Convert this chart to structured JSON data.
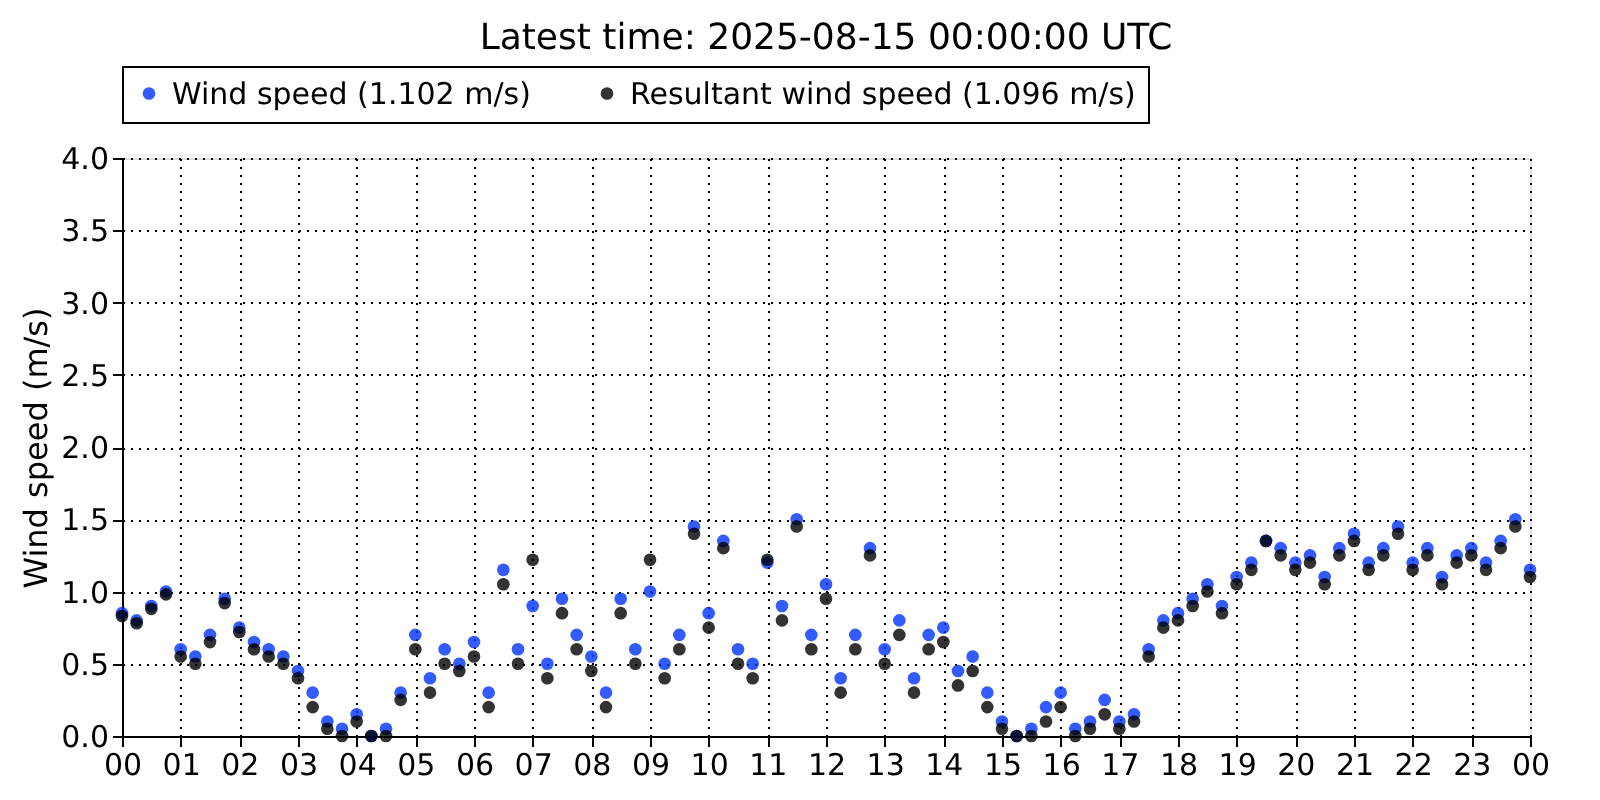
{
  "chart_data": {
    "type": "scatter",
    "title": "Latest time: 2025-08-15 00:00:00 UTC",
    "ylabel": "Wind speed (m/s)",
    "x": [
      0,
      0.25,
      0.5,
      0.75,
      1,
      1.25,
      1.5,
      1.75,
      2,
      2.25,
      2.5,
      2.75,
      3,
      3.25,
      3.5,
      3.75,
      4,
      4.25,
      4.5,
      4.75,
      5,
      5.25,
      5.5,
      5.75,
      6,
      6.25,
      6.5,
      6.75,
      7,
      7.25,
      7.5,
      7.75,
      8,
      8.25,
      8.5,
      8.75,
      9,
      9.25,
      9.5,
      9.75,
      10,
      10.25,
      10.5,
      10.75,
      11,
      11.25,
      11.5,
      11.75,
      12,
      12.25,
      12.5,
      12.75,
      13,
      13.25,
      13.5,
      13.75,
      14,
      14.25,
      14.5,
      14.75,
      15,
      15.25,
      15.5,
      15.75,
      16,
      16.25,
      16.5,
      16.75,
      17,
      17.25,
      17.5,
      17.75,
      18,
      18.25,
      18.5,
      18.75,
      19,
      19.25,
      19.5,
      19.75,
      20,
      20.25,
      20.5,
      20.75,
      21,
      21.25,
      21.5,
      21.75,
      22,
      22.25,
      22.5,
      22.75,
      23,
      23.25,
      23.5,
      23.75,
      24
    ],
    "series": [
      {
        "name": "Wind speed (1.102 m/s)",
        "color": "#0033ff",
        "values": [
          0.85,
          0.8,
          0.9,
          1.0,
          0.6,
          0.55,
          0.7,
          0.95,
          0.75,
          0.65,
          0.6,
          0.55,
          0.45,
          0.3,
          0.1,
          0.05,
          0.15,
          0.0,
          0.05,
          0.3,
          0.7,
          0.4,
          0.6,
          0.5,
          0.65,
          0.3,
          1.15,
          0.6,
          0.9,
          0.5,
          0.95,
          0.7,
          0.55,
          0.3,
          0.95,
          0.6,
          1.0,
          0.5,
          0.7,
          1.45,
          0.85,
          1.35,
          0.6,
          0.5,
          1.2,
          0.9,
          1.5,
          0.7,
          1.05,
          0.4,
          0.7,
          1.3,
          0.6,
          0.8,
          0.4,
          0.7,
          0.75,
          0.45,
          0.55,
          0.3,
          0.1,
          0.0,
          0.05,
          0.2,
          0.3,
          0.05,
          0.1,
          0.25,
          0.1,
          0.15,
          0.6,
          0.8,
          0.85,
          0.95,
          1.05,
          0.9,
          1.1,
          1.2,
          1.35,
          1.3,
          1.2,
          1.25,
          1.1,
          1.3,
          1.4,
          1.2,
          1.3,
          1.45,
          1.2,
          1.3,
          1.1,
          1.25,
          1.3,
          1.2,
          1.35,
          1.5,
          1.15
        ]
      },
      {
        "name": "Resultant wind speed (1.096 m/s)",
        "color": "#000000",
        "values": [
          0.83,
          0.78,
          0.88,
          0.98,
          0.55,
          0.5,
          0.65,
          0.92,
          0.72,
          0.6,
          0.55,
          0.5,
          0.4,
          0.2,
          0.05,
          0.0,
          0.1,
          0.0,
          0.0,
          0.25,
          0.6,
          0.3,
          0.5,
          0.45,
          0.55,
          0.2,
          1.05,
          0.5,
          1.22,
          0.4,
          0.85,
          0.6,
          0.45,
          0.2,
          0.85,
          0.5,
          1.22,
          0.4,
          0.6,
          1.4,
          0.75,
          1.3,
          0.5,
          0.4,
          1.22,
          0.8,
          1.45,
          0.6,
          0.95,
          0.3,
          0.6,
          1.25,
          0.5,
          0.7,
          0.3,
          0.6,
          0.65,
          0.35,
          0.45,
          0.2,
          0.05,
          0.0,
          0.0,
          0.1,
          0.2,
          0.0,
          0.05,
          0.15,
          0.05,
          0.1,
          0.55,
          0.75,
          0.8,
          0.9,
          1.0,
          0.85,
          1.05,
          1.15,
          1.35,
          1.25,
          1.15,
          1.2,
          1.05,
          1.25,
          1.35,
          1.15,
          1.25,
          1.4,
          1.15,
          1.25,
          1.05,
          1.2,
          1.25,
          1.15,
          1.3,
          1.45,
          1.1
        ]
      }
    ],
    "xlim": [
      0,
      24
    ],
    "xticks": [
      {
        "value": 0,
        "label": "00"
      },
      {
        "value": 1,
        "label": "01"
      },
      {
        "value": 2,
        "label": "02"
      },
      {
        "value": 3,
        "label": "03"
      },
      {
        "value": 4,
        "label": "04"
      },
      {
        "value": 5,
        "label": "05"
      },
      {
        "value": 6,
        "label": "06"
      },
      {
        "value": 7,
        "label": "07"
      },
      {
        "value": 8,
        "label": "08"
      },
      {
        "value": 9,
        "label": "09"
      },
      {
        "value": 10,
        "label": "10"
      },
      {
        "value": 11,
        "label": "11"
      },
      {
        "value": 12,
        "label": "12"
      },
      {
        "value": 13,
        "label": "13"
      },
      {
        "value": 14,
        "label": "14"
      },
      {
        "value": 15,
        "label": "15"
      },
      {
        "value": 16,
        "label": "16"
      },
      {
        "value": 17,
        "label": "17"
      },
      {
        "value": 18,
        "label": "18"
      },
      {
        "value": 19,
        "label": "19"
      },
      {
        "value": 20,
        "label": "20"
      },
      {
        "value": 21,
        "label": "21"
      },
      {
        "value": 22,
        "label": "22"
      },
      {
        "value": 23,
        "label": "23"
      },
      {
        "value": 24,
        "label": "00"
      }
    ],
    "ylim": [
      0,
      4
    ],
    "yticks": [
      {
        "value": 0,
        "label": "0.0"
      },
      {
        "value": 0.5,
        "label": "0.5"
      },
      {
        "value": 1,
        "label": "1.0"
      },
      {
        "value": 1.5,
        "label": "1.5"
      },
      {
        "value": 2,
        "label": "2.0"
      },
      {
        "value": 2.5,
        "label": "2.5"
      },
      {
        "value": 3,
        "label": "3.0"
      },
      {
        "value": 3.5,
        "label": "3.5"
      },
      {
        "value": 4,
        "label": "4.0"
      }
    ],
    "grid": true,
    "legend": "top",
    "marker": "circle"
  }
}
